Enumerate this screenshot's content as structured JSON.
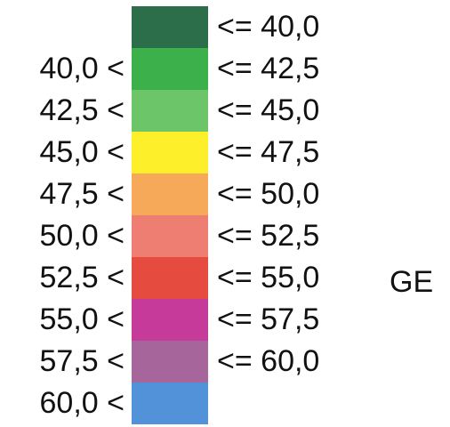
{
  "legend": {
    "unit": "GE",
    "rows": [
      {
        "lower": "",
        "upper": "<= 40,0",
        "color": "#2c6e49"
      },
      {
        "lower": "40,0 <",
        "upper": "<= 42,5",
        "color": "#3cb04a"
      },
      {
        "lower": "42,5 <",
        "upper": "<= 45,0",
        "color": "#6dc56a"
      },
      {
        "lower": "45,0 <",
        "upper": "<= 47,5",
        "color": "#fdf02b"
      },
      {
        "lower": "47,5 <",
        "upper": "<= 50,0",
        "color": "#f5a959"
      },
      {
        "lower": "50,0 <",
        "upper": "<= 52,5",
        "color": "#ee7e72"
      },
      {
        "lower": "52,5 <",
        "upper": "<= 55,0",
        "color": "#e64b3f"
      },
      {
        "lower": "55,0 <",
        "upper": "<= 57,5",
        "color": "#c63a9a"
      },
      {
        "lower": "57,5 <",
        "upper": "<= 60,0",
        "color": "#a6659b"
      },
      {
        "lower": "60,0 <",
        "upper": "",
        "color": "#5292d8"
      }
    ]
  }
}
